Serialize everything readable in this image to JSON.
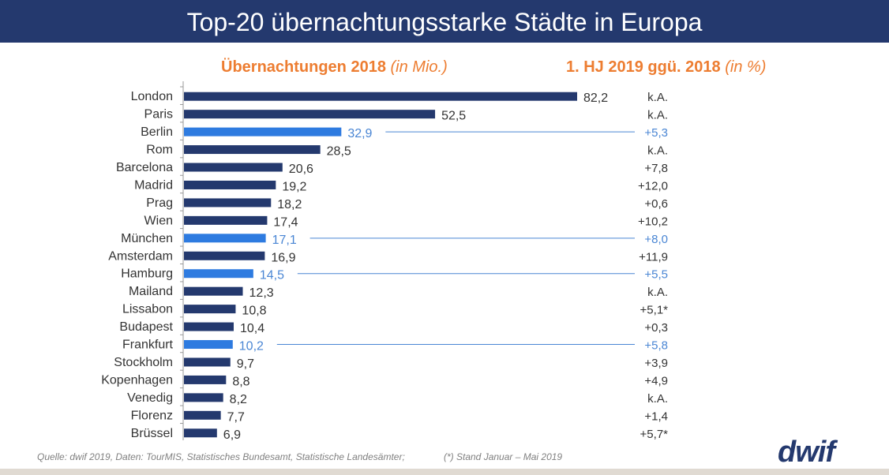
{
  "header": {
    "title": "Top-20 übernachtungsstarke Städte in Europa"
  },
  "column_headers": {
    "left": "Übernachtungen 2018 ",
    "left_unit": "(in Mio.)",
    "right": "1. HJ 2019 ggü. 2018 ",
    "right_unit": "(in %)"
  },
  "chart_data": {
    "type": "bar",
    "orientation": "horizontal",
    "title": "Top-20 übernachtungsstarke Städte in Europa",
    "xlabel": "Übernachtungen 2018 (in Mio.)",
    "ylabel": "",
    "xlim": [
      0,
      82.2
    ],
    "grid": false,
    "categories": [
      "London",
      "Paris",
      "Berlin",
      "Rom",
      "Barcelona",
      "Madrid",
      "Prag",
      "Wien",
      "München",
      "Amsterdam",
      "Hamburg",
      "Mailand",
      "Lissabon",
      "Budapest",
      "Frankfurt",
      "Stockholm",
      "Kopenhagen",
      "Venedig",
      "Florenz",
      "Brüssel"
    ],
    "values": [
      82.2,
      52.5,
      32.9,
      28.5,
      20.6,
      19.2,
      18.2,
      17.4,
      17.1,
      16.9,
      14.5,
      12.3,
      10.8,
      10.4,
      10.2,
      9.7,
      8.8,
      8.2,
      7.7,
      6.9
    ],
    "value_labels": [
      "82,2",
      "52,5",
      "32,9",
      "28,5",
      "20,6",
      "19,2",
      "18,2",
      "17,4",
      "17,1",
      "16,9",
      "14,5",
      "12,3",
      "10,8",
      "10,4",
      "10,2",
      "9,7",
      "8,8",
      "8,2",
      "7,7",
      "6,9"
    ],
    "change_h1_2019": [
      "k.A.",
      "k.A.",
      "+5,3",
      "k.A.",
      "+7,8",
      "+12,0",
      "+0,6",
      "+10,2",
      "+8,0",
      "+11,9",
      "+5,5",
      "k.A.",
      "+5,1*",
      "+0,3",
      "+5,8",
      "+3,9",
      "+4,9",
      "k.A.",
      "+1,4",
      "+5,7*"
    ],
    "highlighted": [
      "Berlin",
      "München",
      "Hamburg",
      "Frankfurt"
    ],
    "colors": {
      "default": "#24396e",
      "highlight": "#2e7be0",
      "highlight_text": "#4a86d4",
      "text": "#333333"
    }
  },
  "footer": {
    "source": "Quelle: dwif 2019, Daten: TourMIS, Statistisches Bundesamt, Statistische Landesämter;",
    "note": "(*) Stand Januar – Mai 2019",
    "logo": "dwif"
  }
}
